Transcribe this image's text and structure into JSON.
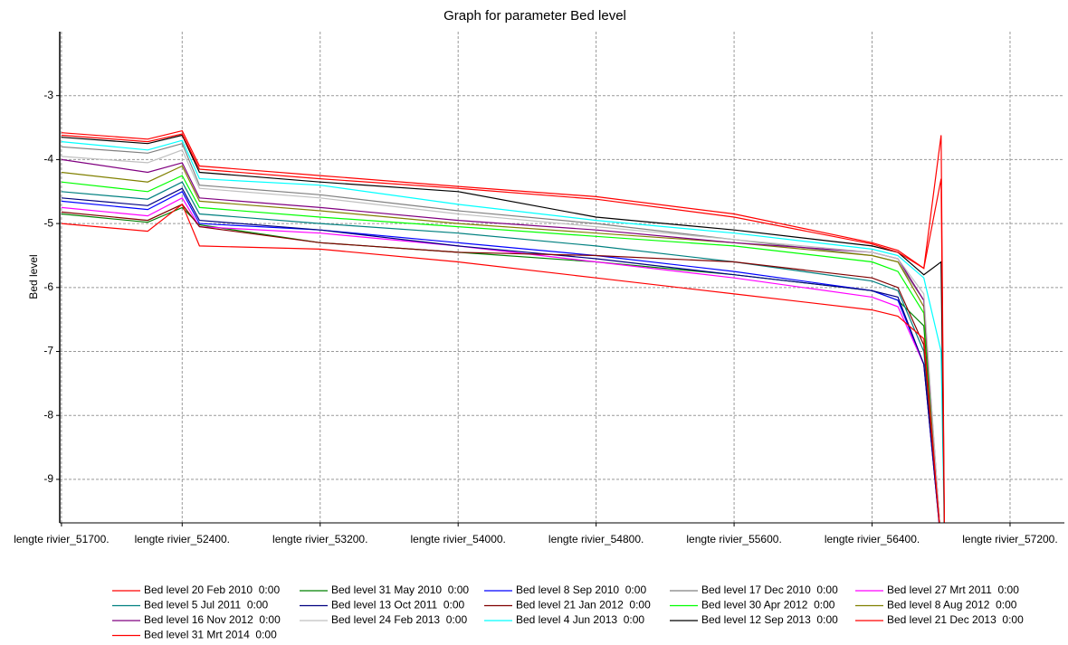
{
  "chart_data": {
    "type": "line",
    "title": "Graph for parameter Bed level",
    "ylabel": "Bed level",
    "x": [
      51700,
      52200,
      52400,
      52500,
      53200,
      54000,
      54800,
      55600,
      56400,
      56550,
      56700,
      56800,
      56820
    ],
    "xlim": [
      51690,
      57515
    ],
    "xticks": [
      {
        "value": 51700,
        "label": "lengte rivier_51700."
      },
      {
        "value": 52400,
        "label": "lengte rivier_52400."
      },
      {
        "value": 53200,
        "label": "lengte rivier_53200."
      },
      {
        "value": 54000,
        "label": "lengte rivier_54000."
      },
      {
        "value": 54800,
        "label": "lengte rivier_54800."
      },
      {
        "value": 55600,
        "label": "lengte rivier_55600."
      },
      {
        "value": 56400,
        "label": "lengte rivier_56400."
      },
      {
        "value": 57200,
        "label": "lengte rivier_57200."
      }
    ],
    "ylim": [
      -9.68,
      -2.0
    ],
    "yticks": [
      -9,
      -8,
      -7,
      -6,
      -5,
      -4,
      -3
    ],
    "grid": true,
    "series": [
      {
        "name": "Bed level 20 Feb 2010  0:00",
        "color": "#ff0000",
        "values": [
          -3.58,
          -3.68,
          -3.55,
          -4.1,
          -4.25,
          -4.42,
          -4.58,
          -4.85,
          -5.3,
          -5.42,
          -5.7,
          -3.62,
          -10
        ]
      },
      {
        "name": "Bed level 31 May 2010  0:00",
        "color": "#008000",
        "values": [
          -4.85,
          -4.98,
          -4.75,
          -5.02,
          -5.3,
          -5.45,
          -5.6,
          -5.8,
          -6.05,
          -6.2,
          -6.6,
          -10,
          -10
        ]
      },
      {
        "name": "Bed level 8 Sep 2010  0:00",
        "color": "#0000ff",
        "values": [
          -4.65,
          -4.78,
          -4.5,
          -5.0,
          -5.1,
          -5.3,
          -5.5,
          -5.75,
          -6.05,
          -6.2,
          -7.2,
          -10,
          -10
        ]
      },
      {
        "name": "Bed level 17 Dec 2010  0:00",
        "color": "#808080",
        "values": [
          -3.8,
          -3.9,
          -3.75,
          -4.4,
          -4.55,
          -4.8,
          -5.0,
          -5.25,
          -5.5,
          -5.6,
          -6.2,
          -10,
          -10
        ]
      },
      {
        "name": "Bed level 27 Mrt 2011  0:00",
        "color": "#ff00ff",
        "values": [
          -4.75,
          -4.88,
          -4.6,
          -5.05,
          -5.15,
          -5.35,
          -5.6,
          -5.85,
          -6.15,
          -6.3,
          -7.2,
          -10,
          -10
        ]
      },
      {
        "name": "Bed level 5 Jul 2011  0:00",
        "color": "#008080",
        "values": [
          -4.5,
          -4.62,
          -4.35,
          -4.85,
          -5.0,
          -5.15,
          -5.35,
          -5.6,
          -5.9,
          -6.05,
          -7.0,
          -10,
          -10
        ]
      },
      {
        "name": "Bed level 13 Oct 2011  0:00",
        "color": "#000080",
        "values": [
          -4.6,
          -4.72,
          -4.45,
          -4.95,
          -5.1,
          -5.35,
          -5.55,
          -5.8,
          -6.05,
          -6.15,
          -7.2,
          -10,
          -10
        ]
      },
      {
        "name": "Bed level 21 Jan 2012  0:00",
        "color": "#800000",
        "values": [
          -4.82,
          -4.95,
          -4.7,
          -5.05,
          -5.3,
          -5.45,
          -5.5,
          -5.6,
          -5.85,
          -6.0,
          -6.9,
          -10,
          -10
        ]
      },
      {
        "name": "Bed level 30 Apr 2012  0:00",
        "color": "#00ff00",
        "values": [
          -4.35,
          -4.5,
          -4.25,
          -4.75,
          -4.9,
          -5.05,
          -5.2,
          -5.35,
          -5.6,
          -5.75,
          -6.4,
          -10,
          -10
        ]
      },
      {
        "name": "Bed level 8 Aug 2012  0:00",
        "color": "#808000",
        "values": [
          -4.2,
          -4.35,
          -4.1,
          -4.65,
          -4.8,
          -5.0,
          -5.15,
          -5.3,
          -5.5,
          -5.6,
          -6.3,
          -10,
          -10
        ]
      },
      {
        "name": "Bed level 16 Nov 2012  0:00",
        "color": "#800080",
        "values": [
          -4.0,
          -4.2,
          -4.05,
          -4.6,
          -4.75,
          -4.95,
          -5.1,
          -5.3,
          -5.45,
          -5.55,
          -6.2,
          -10,
          -10
        ]
      },
      {
        "name": "Bed level 24 Feb 2013  0:00",
        "color": "#c0c0c0",
        "values": [
          -3.95,
          -4.05,
          -3.85,
          -4.45,
          -4.6,
          -4.85,
          -5.05,
          -5.25,
          -5.45,
          -5.55,
          -6.1,
          -10,
          -10
        ]
      },
      {
        "name": "Bed level 4 Jun 2013  0:00",
        "color": "#00ffff",
        "values": [
          -3.72,
          -3.85,
          -3.7,
          -4.3,
          -4.4,
          -4.7,
          -4.95,
          -5.15,
          -5.4,
          -5.5,
          -5.85,
          -7.0,
          -10
        ]
      },
      {
        "name": "Bed level 12 Sep 2013  0:00",
        "color": "#000000",
        "values": [
          -3.65,
          -3.75,
          -3.62,
          -4.2,
          -4.35,
          -4.5,
          -4.9,
          -5.1,
          -5.35,
          -5.45,
          -5.8,
          -5.6,
          -10
        ]
      },
      {
        "name": "Bed level 21 Dec 2013  0:00",
        "color": "#ff0000",
        "values": [
          -3.62,
          -3.72,
          -3.6,
          -4.15,
          -4.3,
          -4.45,
          -4.62,
          -4.9,
          -5.32,
          -5.45,
          -5.7,
          -4.3,
          -10
        ]
      },
      {
        "name": "Bed level 31 Mrt 2014  0:00",
        "color": "#ff0000",
        "values": [
          -5.0,
          -5.12,
          -4.7,
          -5.35,
          -5.4,
          -5.6,
          -5.85,
          -6.1,
          -6.35,
          -6.45,
          -6.8,
          -10,
          -10
        ]
      }
    ]
  }
}
